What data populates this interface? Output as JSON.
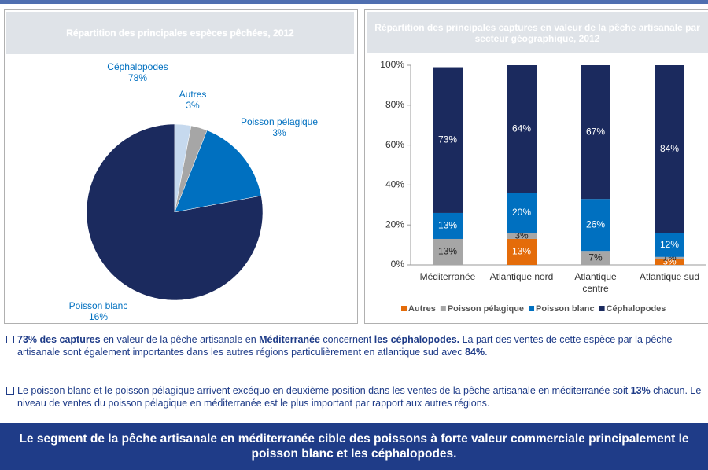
{
  "chart_data": [
    {
      "type": "pie",
      "title": "Répartition des principales espèces pêchées, 2012",
      "categories": [
        "Céphalopodes",
        "Autres",
        "Poisson pélagique",
        "Poisson blanc"
      ],
      "values": [
        78,
        3,
        3,
        16
      ],
      "value_labels": [
        "78%",
        "3%",
        "3%",
        "16%"
      ],
      "colors": [
        "#1b2a5e",
        "#c6d9ee",
        "#a6a6a6",
        "#0070c0"
      ]
    },
    {
      "type": "stacked_bar",
      "title": "Répartition des principales captures en valeur de la pêche artisanale par secteur géographique, 2012",
      "categories": [
        "Méditerranée",
        "Atlantique nord",
        "Atlantique centre",
        "Atlantique sud"
      ],
      "series": [
        {
          "name": "Autres",
          "color": "#e46c0a",
          "values": [
            0,
            13,
            0,
            3
          ],
          "value_labels": [
            null,
            "13%",
            null,
            "3%"
          ]
        },
        {
          "name": "Poisson pélagique",
          "color": "#a6a6a6",
          "values": [
            13,
            3,
            7,
            1
          ],
          "value_labels": [
            "13%",
            "3%",
            "7%",
            "1%"
          ]
        },
        {
          "name": "Poisson blanc",
          "color": "#0070c0",
          "values": [
            13,
            20,
            26,
            12
          ],
          "value_labels": [
            "13%",
            "20%",
            "26%",
            "12%"
          ]
        },
        {
          "name": "Céphalopodes",
          "color": "#1b2a5e",
          "values": [
            73,
            64,
            67,
            84
          ],
          "value_labels": [
            "73%",
            "64%",
            "67%",
            "84%"
          ]
        }
      ],
      "ylim": [
        0,
        100
      ],
      "yticks": [
        {
          "value": 0,
          "label": "0%"
        },
        {
          "value": 20,
          "label": "20%"
        },
        {
          "value": 40,
          "label": "40%"
        },
        {
          "value": 60,
          "label": "60%"
        },
        {
          "value": 80,
          "label": "80%"
        },
        {
          "value": 100,
          "label": "100%"
        }
      ],
      "legend": "bottom"
    }
  ],
  "bullets": [
    [
      {
        "text": "73% des captures",
        "bold": true
      },
      {
        "text": " en valeur de la pêche artisanale en ",
        "bold": false
      },
      {
        "text": "Méditerranée",
        "bold": true
      },
      {
        "text": " concernent ",
        "bold": false
      },
      {
        "text": "les céphalopodes.",
        "bold": true
      },
      {
        "text": " La part des ventes de cette espèce par la pêche artisanale sont également importantes dans les autres régions particulièrement en atlantique sud avec ",
        "bold": false
      },
      {
        "text": "84%",
        "bold": true
      },
      {
        "text": ".",
        "bold": false
      }
    ],
    [
      {
        "text": "Le poisson blanc et le poisson pélagique arrivent excéquo en deuxième position dans les ventes de la pêche artisanale en méditerranée soit ",
        "bold": false
      },
      {
        "text": "13%",
        "bold": true
      },
      {
        "text": " chacun. Le niveau de ventes du poisson pélagique en méditerranée est le plus important par rapport aux autres régions.",
        "bold": false
      }
    ]
  ],
  "conclusion": "Le segment de la pêche artisanale en méditerranée cible des poissons à forte valeur commerciale principalement le poisson blanc et les céphalopodes."
}
